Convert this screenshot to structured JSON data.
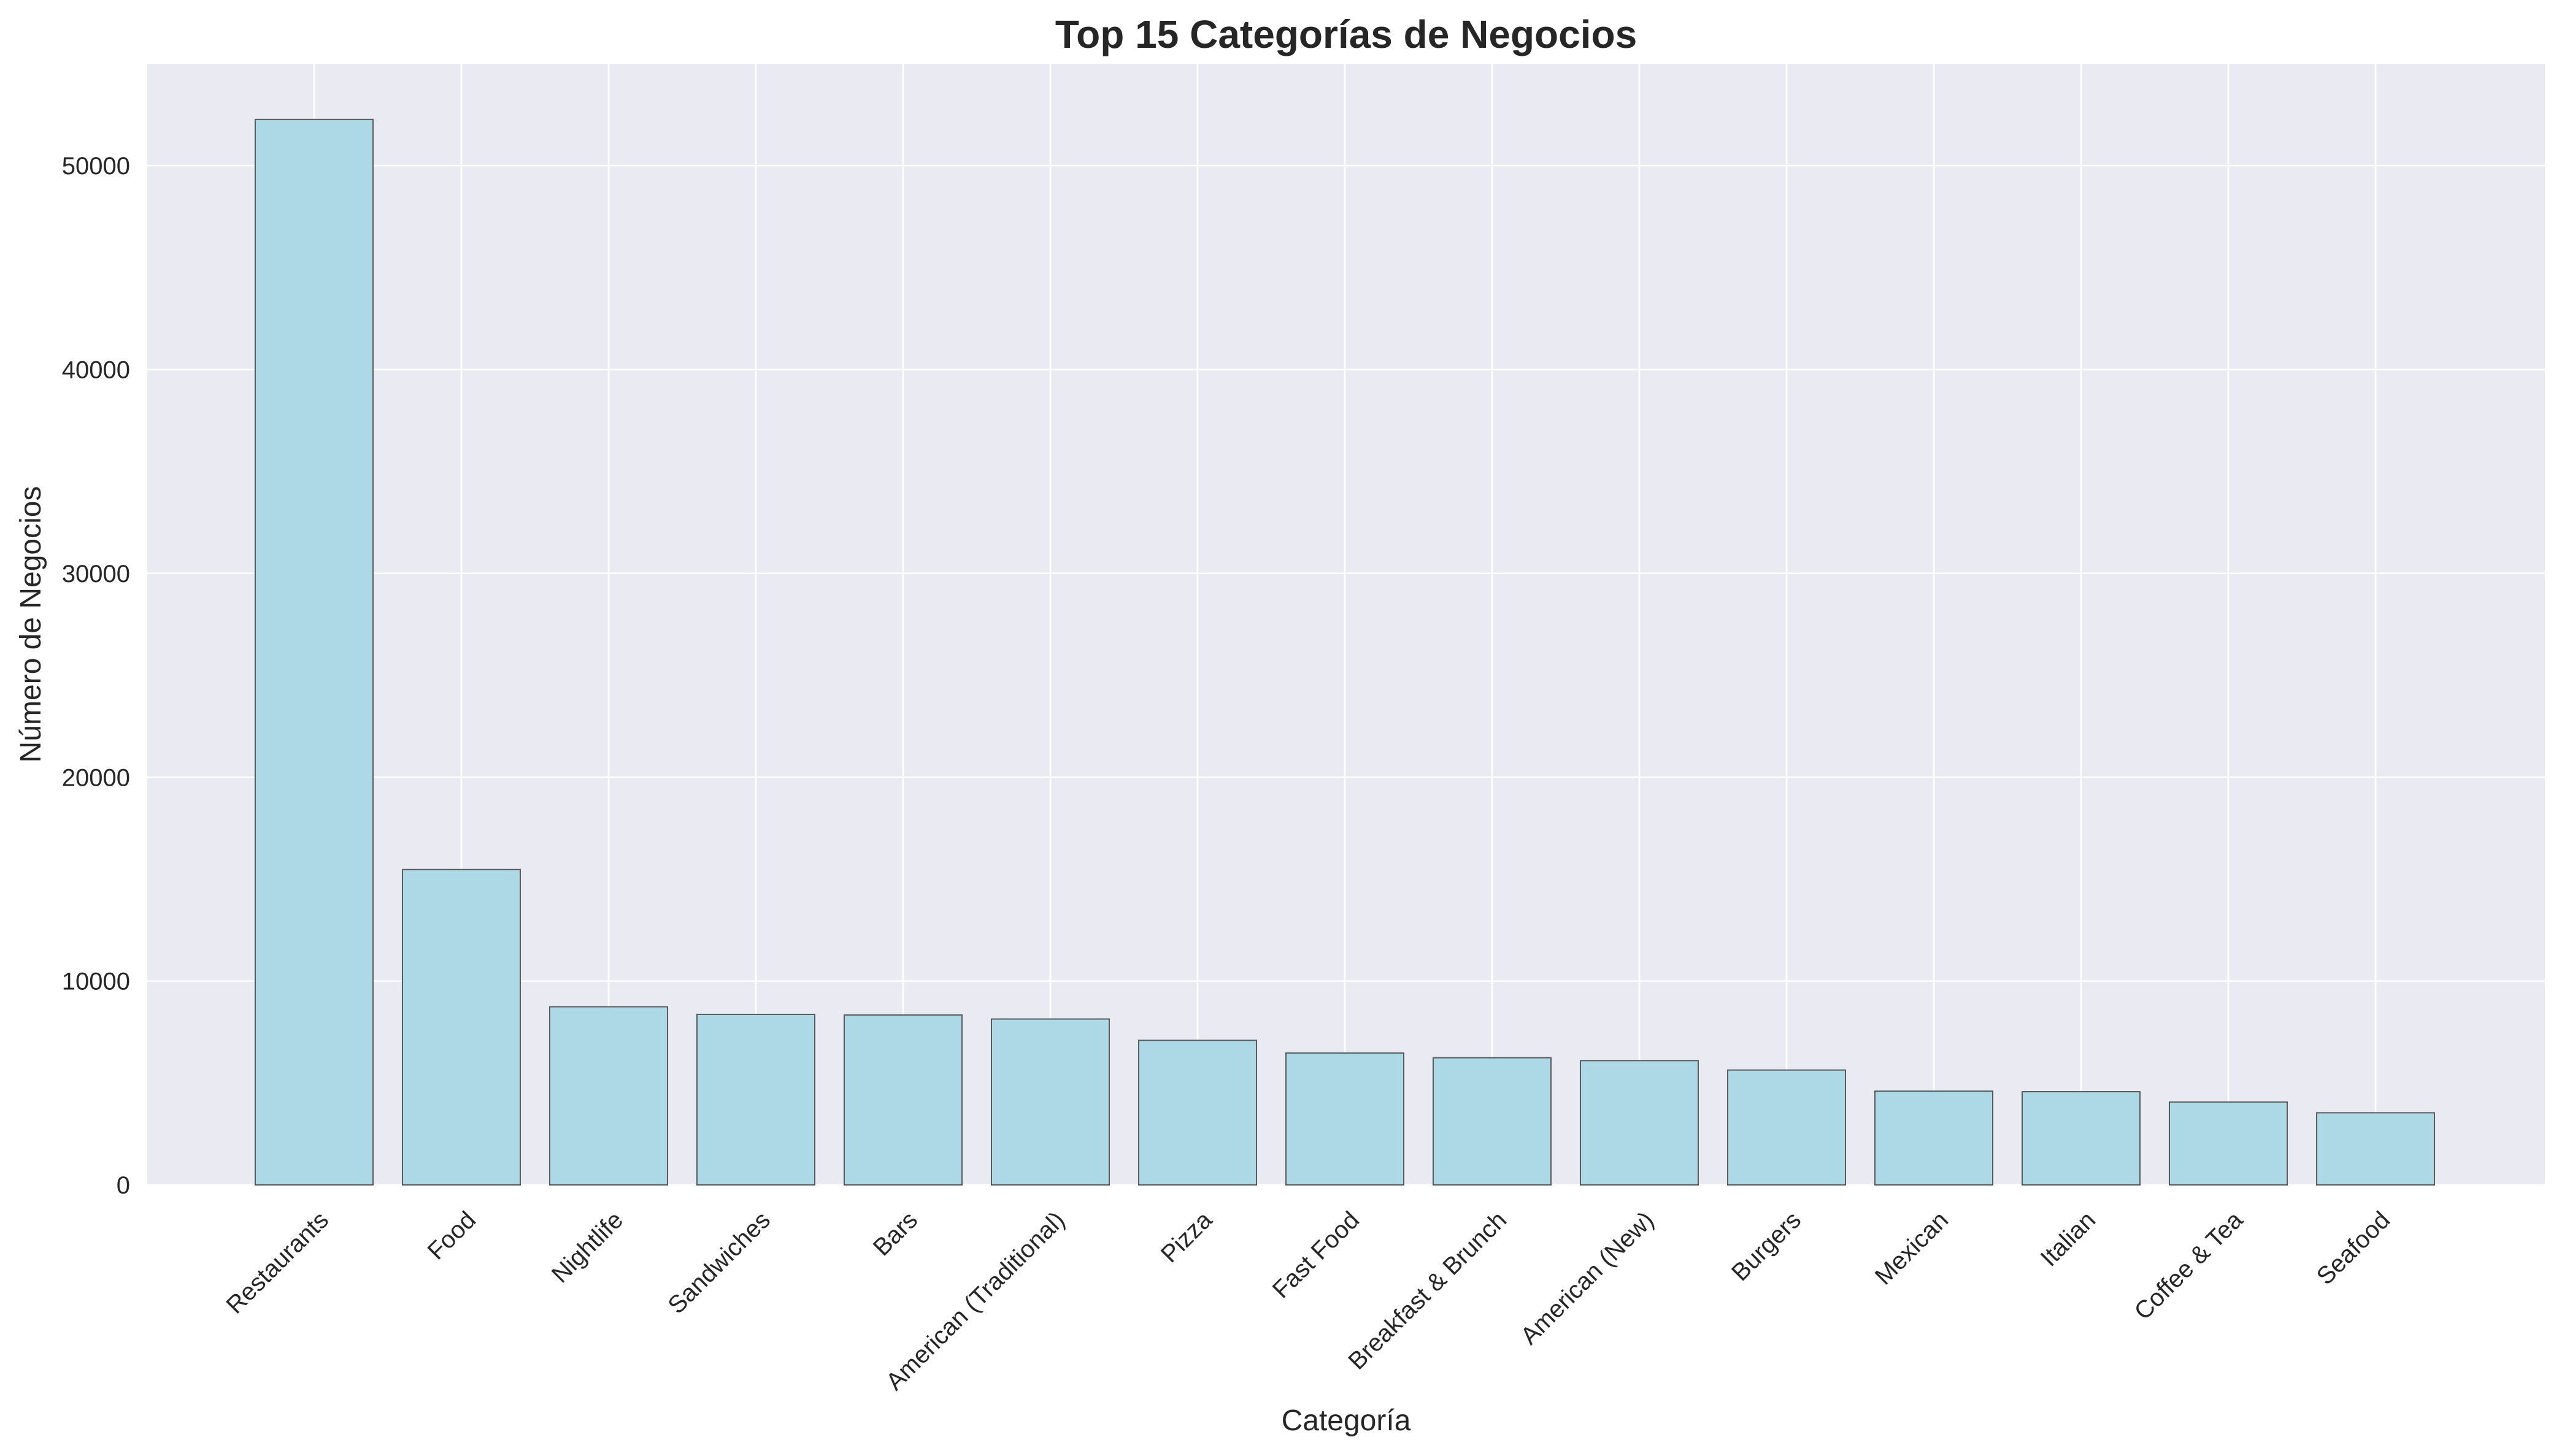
{
  "chart_data": {
    "type": "bar",
    "title": "Top 15 Categorías de Negocios",
    "xlabel": "Categoría",
    "ylabel": "Número de Negocios",
    "categories": [
      "Restaurants",
      "Food",
      "Nightlife",
      "Sandwiches",
      "Bars",
      "American (Traditional)",
      "Pizza",
      "Fast Food",
      "Breakfast & Brunch",
      "American (New)",
      "Burgers",
      "Mexican",
      "Italian",
      "Coffee & Tea",
      "Seafood"
    ],
    "values": [
      52268,
      15472,
      8741,
      8366,
      8337,
      8139,
      7093,
      6472,
      6239,
      6097,
      5636,
      4600,
      4573,
      4067,
      3539
    ],
    "ylim": [
      0,
      55000
    ],
    "yticks": [
      0,
      10000,
      20000,
      30000,
      40000,
      50000
    ],
    "grid": true,
    "legend": "none",
    "colors": {
      "bar_fill": "#add8e6",
      "bar_edge": "#5a5a5a",
      "plot_background": "#eaeaf2",
      "grid": "#ffffff"
    }
  }
}
